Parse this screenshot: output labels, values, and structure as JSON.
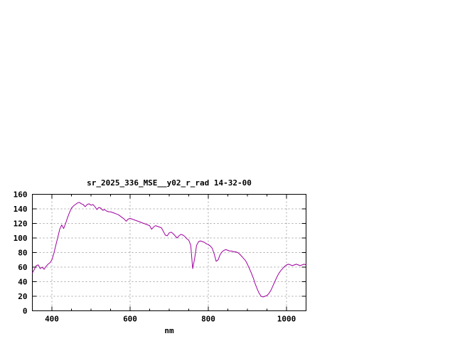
{
  "chart": {
    "title": "sr_2025_336_MSE__y02_r_rad 14-32-00",
    "xlabel": "nm"
  },
  "chart_data": {
    "type": "line",
    "title": "sr_2025_336_MSE__y02_r_rad 14-32-00",
    "xlabel": "nm",
    "ylabel": "",
    "xlim": [
      350,
      1050
    ],
    "ylim": [
      0,
      160
    ],
    "xticks": [
      400,
      600,
      800,
      1000
    ],
    "yticks": [
      0,
      20,
      40,
      60,
      80,
      100,
      120,
      140,
      160
    ],
    "minor_xtick_step": 50,
    "grid": true,
    "legend": "none",
    "colors": {
      "line": "#a000a0",
      "grid": "#a8a8a8",
      "axis": "#000000",
      "text": "#000000",
      "background": "#ffffff"
    },
    "series": [
      {
        "name": "sr_2025_336_MSE__y02_r_rad 14-32-00",
        "x": [
          350,
          355,
          360,
          365,
          370,
          375,
          380,
          385,
          390,
          395,
          400,
          405,
          410,
          415,
          420,
          425,
          430,
          435,
          440,
          445,
          450,
          455,
          460,
          465,
          470,
          475,
          480,
          485,
          490,
          495,
          500,
          505,
          510,
          515,
          520,
          525,
          530,
          535,
          540,
          545,
          550,
          555,
          560,
          565,
          570,
          575,
          580,
          585,
          590,
          595,
          600,
          605,
          610,
          615,
          620,
          625,
          630,
          635,
          640,
          645,
          650,
          655,
          660,
          665,
          670,
          675,
          680,
          685,
          690,
          695,
          700,
          705,
          710,
          715,
          720,
          725,
          730,
          735,
          740,
          745,
          750,
          755,
          760,
          765,
          770,
          775,
          780,
          785,
          790,
          795,
          800,
          805,
          810,
          815,
          820,
          825,
          830,
          835,
          840,
          845,
          850,
          855,
          860,
          865,
          870,
          875,
          880,
          885,
          890,
          895,
          900,
          905,
          910,
          915,
          920,
          925,
          930,
          935,
          940,
          945,
          950,
          955,
          960,
          965,
          970,
          975,
          980,
          985,
          990,
          995,
          1000,
          1005,
          1010,
          1015,
          1020,
          1025,
          1030,
          1035,
          1040,
          1045,
          1050
        ],
        "y": [
          52,
          57,
          62,
          63,
          58,
          60,
          57,
          61,
          64,
          66,
          70,
          79,
          90,
          101,
          112,
          118,
          113,
          120,
          128,
          135,
          141,
          144,
          146,
          148,
          149,
          147,
          146,
          143,
          146,
          147,
          145,
          146,
          143,
          139,
          142,
          141,
          138,
          139,
          137,
          136,
          136,
          135,
          134,
          133,
          132,
          130,
          128,
          126,
          123,
          126,
          127,
          126,
          125,
          124,
          123,
          122,
          121,
          120,
          119,
          118,
          117,
          112,
          115,
          117,
          116,
          115,
          114,
          109,
          104,
          103,
          107,
          108,
          106,
          103,
          100,
          103,
          105,
          104,
          102,
          99,
          97,
          90,
          58,
          72,
          90,
          95,
          96,
          95,
          94,
          92,
          91,
          89,
          86,
          78,
          68,
          70,
          77,
          81,
          83,
          84,
          83,
          82,
          82,
          81,
          81,
          80,
          78,
          75,
          72,
          69,
          64,
          58,
          52,
          45,
          37,
          30,
          24,
          20,
          19,
          20,
          21,
          24,
          28,
          34,
          40,
          46,
          51,
          55,
          58,
          61,
          63,
          64,
          63,
          62,
          63,
          64,
          63,
          62,
          63,
          64,
          63
        ]
      }
    ]
  }
}
